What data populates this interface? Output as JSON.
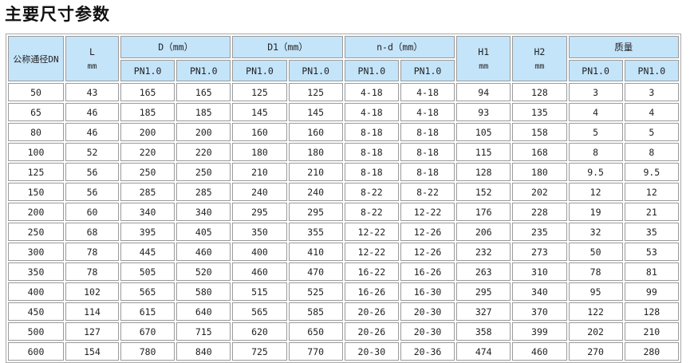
{
  "title": "主要尺寸参数",
  "header": {
    "dn": "公称通径DN",
    "l": "L",
    "l_unit": "mm",
    "d": "D（mm）",
    "d1": "D1（mm）",
    "nd": "n-d（mm）",
    "h1": "H1",
    "h1_unit": "mm",
    "h2": "H2",
    "h2_unit": "mm",
    "mass": "质量",
    "pn": "PN1.0"
  },
  "colors": {
    "header_bg": "#c4e4fa",
    "border": "#9a9a9a"
  },
  "rows": [
    [
      "50",
      "43",
      "165",
      "165",
      "125",
      "125",
      "4-18",
      "4-18",
      "94",
      "128",
      "3",
      "3"
    ],
    [
      "65",
      "46",
      "185",
      "185",
      "145",
      "145",
      "4-18",
      "4-18",
      "93",
      "135",
      "4",
      "4"
    ],
    [
      "80",
      "46",
      "200",
      "200",
      "160",
      "160",
      "8-18",
      "8-18",
      "105",
      "158",
      "5",
      "5"
    ],
    [
      "100",
      "52",
      "220",
      "220",
      "180",
      "180",
      "8-18",
      "8-18",
      "115",
      "168",
      "8",
      "8"
    ],
    [
      "125",
      "56",
      "250",
      "250",
      "210",
      "210",
      "8-18",
      "8-18",
      "128",
      "180",
      "9.5",
      "9.5"
    ],
    [
      "150",
      "56",
      "285",
      "285",
      "240",
      "240",
      "8-22",
      "8-22",
      "152",
      "202",
      "12",
      "12"
    ],
    [
      "200",
      "60",
      "340",
      "340",
      "295",
      "295",
      "8-22",
      "12-22",
      "176",
      "228",
      "19",
      "21"
    ],
    [
      "250",
      "68",
      "395",
      "405",
      "350",
      "355",
      "12-22",
      "12-26",
      "206",
      "235",
      "32",
      "35"
    ],
    [
      "300",
      "78",
      "445",
      "460",
      "400",
      "410",
      "12-22",
      "12-26",
      "232",
      "273",
      "50",
      "53"
    ],
    [
      "350",
      "78",
      "505",
      "520",
      "460",
      "470",
      "16-22",
      "16-26",
      "263",
      "310",
      "78",
      "81"
    ],
    [
      "400",
      "102",
      "565",
      "580",
      "515",
      "525",
      "16-26",
      "16-30",
      "295",
      "340",
      "95",
      "99"
    ],
    [
      "450",
      "114",
      "615",
      "640",
      "565",
      "585",
      "20-26",
      "20-30",
      "327",
      "370",
      "122",
      "128"
    ],
    [
      "500",
      "127",
      "670",
      "715",
      "620",
      "650",
      "20-26",
      "20-30",
      "358",
      "399",
      "202",
      "210"
    ],
    [
      "600",
      "154",
      "780",
      "840",
      "725",
      "770",
      "20-30",
      "20-36",
      "474",
      "460",
      "270",
      "280"
    ]
  ]
}
